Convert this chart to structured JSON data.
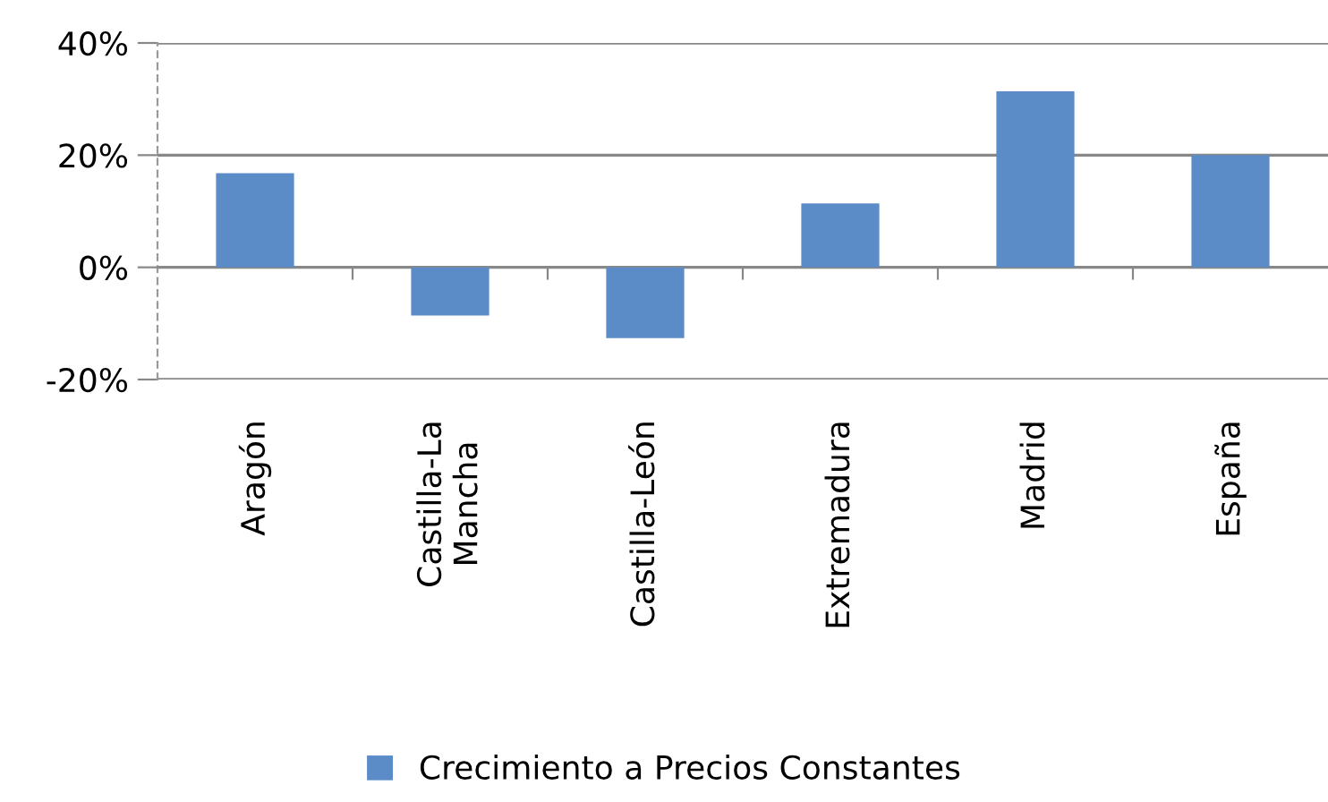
{
  "chart_data": {
    "type": "bar",
    "categories": [
      "Aragón",
      "Castilla-La\nMancha",
      "Castilla-León",
      "Extremadura",
      "Madrid",
      "España"
    ],
    "series": [
      {
        "name": "Crecimiento a Precios Constantes",
        "color": "#5b8cc8",
        "values": [
          16.8,
          -8.6,
          -12.6,
          11.4,
          31.4,
          20
        ]
      }
    ],
    "ylim": [
      -20,
      40
    ],
    "yticks": [
      {
        "value": -20,
        "label": "-20%"
      },
      {
        "value": 0,
        "label": "0%"
      },
      {
        "value": 20,
        "label": "20%"
      },
      {
        "value": 40,
        "label": "40%"
      }
    ],
    "grid": "y",
    "legend": "bottom"
  }
}
